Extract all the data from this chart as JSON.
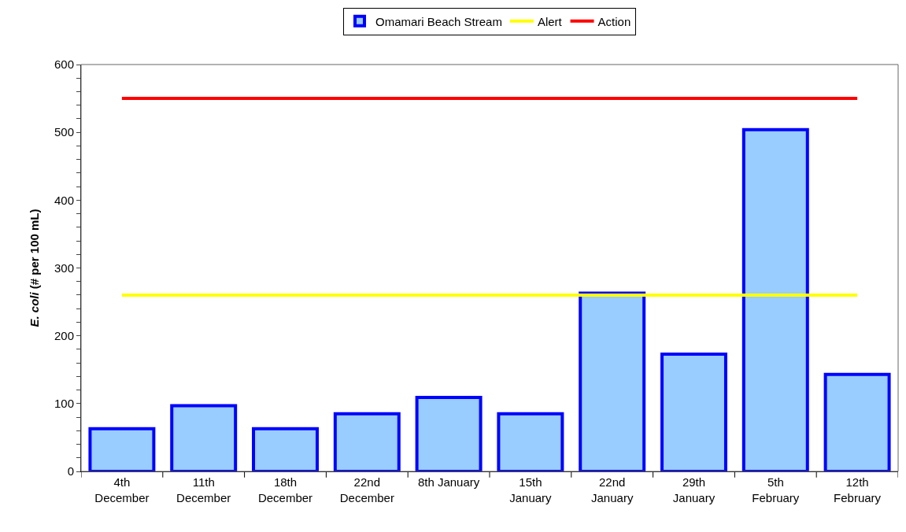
{
  "chart_data": {
    "type": "bar",
    "ylabel": "E. coli (# per 100 mL)",
    "categories": [
      "4th\nDecember",
      "11th\nDecember",
      "18th\nDecember",
      "22nd\nDecember",
      "8th January",
      "15th\nJanuary",
      "22nd\nJanuary",
      "29th\nJanuary",
      "5th\nFebruary",
      "12th\nFebruary"
    ],
    "series": [
      {
        "name": "Omamari Beach Stream",
        "color": "#99ccff",
        "values": [
          63,
          97,
          63,
          85,
          109,
          85,
          263,
          173,
          504,
          143
        ]
      },
      {
        "name": "Alert",
        "type": "line",
        "color": "#ffff00",
        "values": [
          260,
          260,
          260,
          260,
          260,
          260,
          260,
          260,
          260,
          260
        ]
      },
      {
        "name": "Action",
        "type": "line",
        "color": "#ff0000",
        "values": [
          550,
          550,
          550,
          550,
          550,
          550,
          550,
          550,
          550,
          550
        ]
      }
    ],
    "ylim": [
      0,
      600
    ],
    "yticks": [
      0,
      {
        "value": 20,
        "label": null
      },
      {
        "value": 40,
        "label": null
      },
      {
        "value": 60,
        "label": null
      },
      {
        "value": 80,
        "label": null
      },
      100,
      {
        "value": 120,
        "label": null
      },
      {
        "value": 140,
        "label": null
      },
      {
        "value": 160,
        "label": null
      },
      {
        "value": 180,
        "label": null
      },
      200,
      {
        "value": 220,
        "label": null
      },
      {
        "value": 240,
        "label": null
      },
      {
        "value": 260,
        "label": null
      },
      {
        "value": 280,
        "label": null
      },
      300,
      {
        "value": 320,
        "label": null
      },
      {
        "value": 340,
        "label": null
      },
      {
        "value": 360,
        "label": null
      },
      {
        "value": 380,
        "label": null
      },
      400,
      {
        "value": 420,
        "label": null
      },
      {
        "value": 440,
        "label": null
      },
      {
        "value": 460,
        "label": null
      },
      {
        "value": 480,
        "label": null
      },
      500,
      {
        "value": 520,
        "label": null
      },
      {
        "value": 540,
        "label": null
      },
      {
        "value": 560,
        "label": null
      },
      {
        "value": 580,
        "label": null
      },
      600
    ],
    "grid": false,
    "legend": "top",
    "marker": "none"
  }
}
